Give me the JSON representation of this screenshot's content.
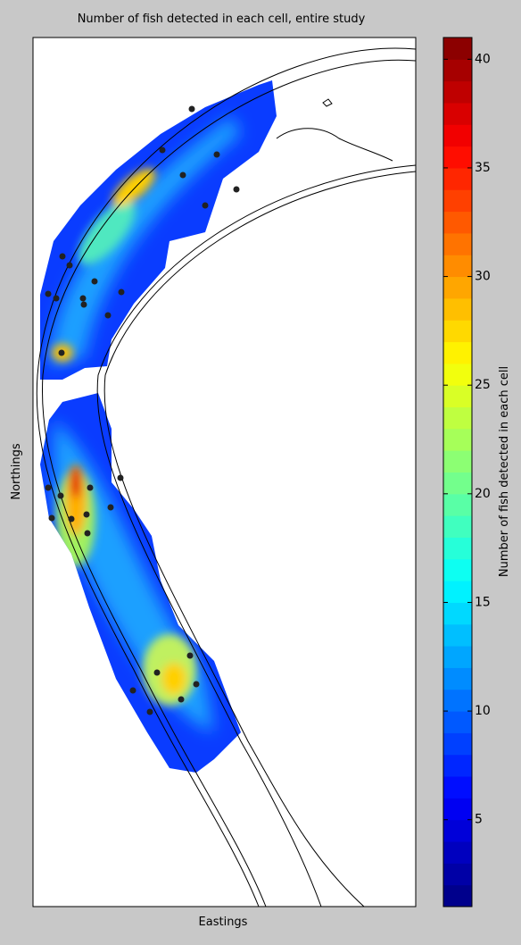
{
  "chart_data": {
    "type": "heatmap",
    "title": "Number of fish detected in each cell, entire study",
    "xlabel": "Eastings",
    "ylabel": "Northings",
    "colorbar_label": "Number of fish detected in each cell",
    "colormap": "jet",
    "clim": [
      1,
      41
    ],
    "cticks": [
      5,
      10,
      15,
      20,
      25,
      30,
      35,
      40
    ]
  }
}
